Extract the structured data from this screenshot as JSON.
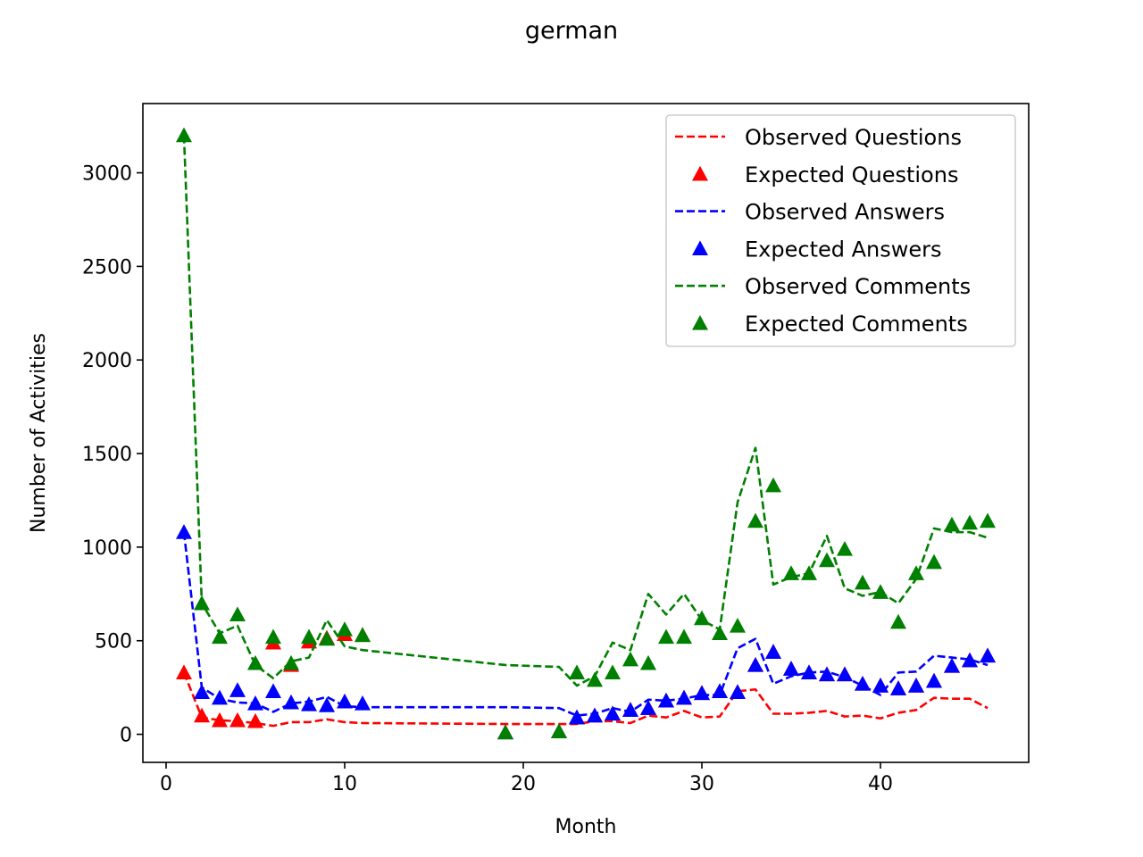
{
  "chart_data": {
    "type": "line",
    "title": "german",
    "xlabel": "Month",
    "ylabel": "Number of Activities",
    "xlim": [
      -1.3,
      48.3
    ],
    "ylim": [
      -150,
      3370
    ],
    "xticks": [
      0,
      10,
      20,
      30,
      40
    ],
    "yticks": [
      0,
      500,
      1000,
      1500,
      2000,
      2500,
      3000
    ],
    "grid": false,
    "legend_position": "top-right",
    "x": [
      1,
      2,
      3,
      4,
      5,
      6,
      7,
      8,
      9,
      10,
      11,
      19,
      22,
      23,
      24,
      25,
      26,
      27,
      28,
      29,
      30,
      31,
      32,
      33,
      34,
      35,
      36,
      37,
      38,
      39,
      40,
      41,
      42,
      43,
      44,
      45,
      46
    ],
    "series": [
      {
        "name": "Observed Questions",
        "style": "dashed-line",
        "color": "#ff0000",
        "values": [
          330,
          90,
          75,
          70,
          60,
          45,
          65,
          65,
          80,
          65,
          60,
          55,
          55,
          55,
          70,
          70,
          60,
          100,
          90,
          125,
          90,
          95,
          230,
          240,
          110,
          110,
          115,
          125,
          95,
          100,
          85,
          115,
          130,
          195,
          190,
          190,
          140
        ]
      },
      {
        "name": "Expected Questions",
        "style": "triangle-marker",
        "color": "#ff0000",
        "values": [
          330,
          100,
          75,
          75,
          70,
          490,
          370,
          495,
          515,
          535,
          530,
          10,
          15,
          90,
          100,
          110,
          130,
          140,
          180,
          195,
          220,
          230,
          225,
          370,
          440,
          350,
          330,
          320,
          320,
          270,
          260,
          245,
          260,
          285,
          365,
          395,
          420
        ]
      },
      {
        "name": "Observed Answers",
        "style": "dashed-line",
        "color": "#0000ff",
        "values": [
          1080,
          250,
          190,
          170,
          165,
          120,
          165,
          175,
          200,
          150,
          145,
          145,
          140,
          100,
          110,
          140,
          120,
          185,
          180,
          190,
          210,
          210,
          460,
          510,
          270,
          310,
          330,
          335,
          305,
          260,
          210,
          330,
          335,
          420,
          410,
          400,
          370
        ]
      },
      {
        "name": "Expected Answers",
        "style": "triangle-marker",
        "color": "#0000ff",
        "values": [
          1080,
          225,
          195,
          235,
          165,
          230,
          170,
          160,
          155,
          175,
          165,
          10,
          15,
          90,
          100,
          110,
          130,
          140,
          180,
          195,
          220,
          230,
          225,
          370,
          440,
          350,
          330,
          320,
          320,
          270,
          260,
          245,
          260,
          285,
          365,
          395,
          420
        ]
      },
      {
        "name": "Observed Comments",
        "style": "dashed-line",
        "color": "#008000",
        "values": [
          3200,
          700,
          540,
          580,
          370,
          300,
          390,
          410,
          610,
          470,
          450,
          370,
          360,
          260,
          310,
          490,
          450,
          750,
          640,
          750,
          610,
          560,
          1240,
          1530,
          800,
          840,
          860,
          1060,
          780,
          740,
          760,
          700,
          830,
          1100,
          1080,
          1080,
          1050
        ]
      },
      {
        "name": "Expected Comments",
        "style": "triangle-marker",
        "color": "#008000",
        "values": [
          3200,
          700,
          520,
          640,
          380,
          520,
          380,
          520,
          510,
          560,
          530,
          10,
          15,
          330,
          290,
          330,
          400,
          380,
          520,
          520,
          620,
          540,
          580,
          1140,
          1330,
          860,
          860,
          930,
          990,
          810,
          760,
          600,
          860,
          920,
          1120,
          1130,
          1140
        ]
      }
    ]
  }
}
